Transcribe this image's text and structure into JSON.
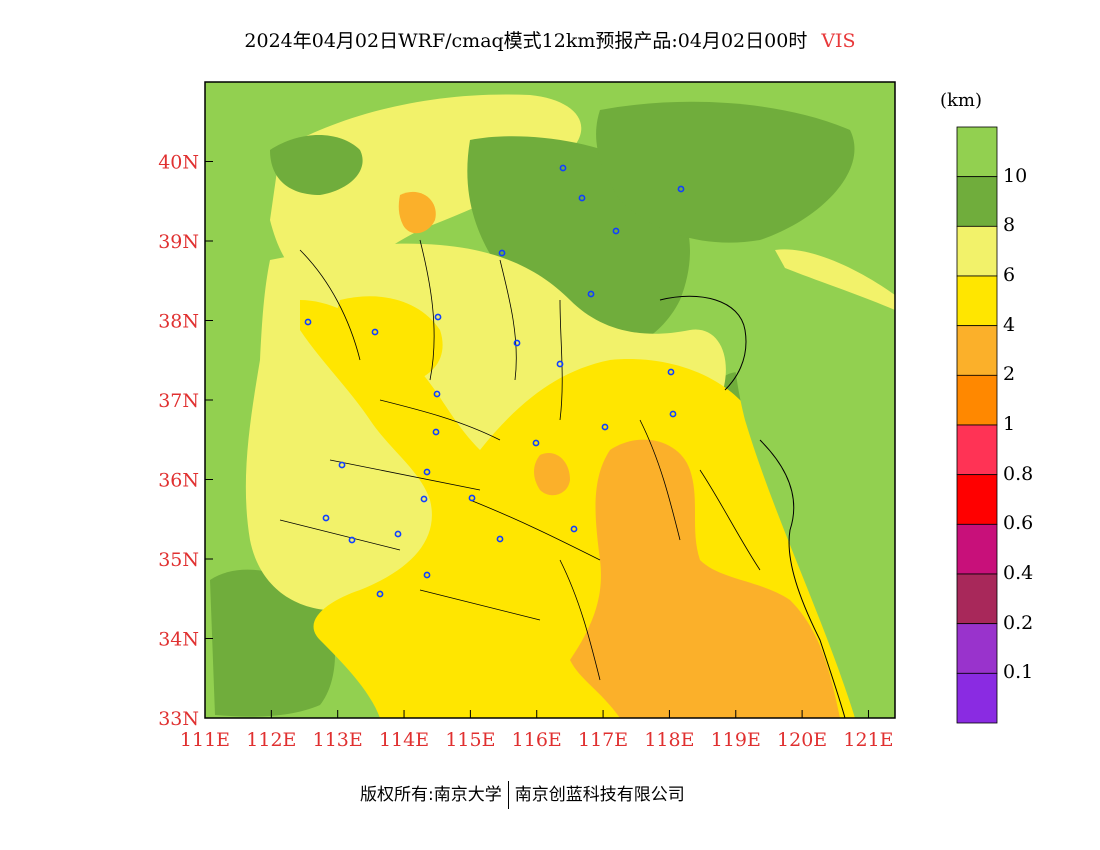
{
  "title": {
    "main": "2024年04月02日WRF/cmaq模式12km预报产品:04月02日00时",
    "variable": "VIS"
  },
  "map": {
    "lon_range": [
      111,
      121.4
    ],
    "lat_range": [
      33,
      41
    ],
    "x_ticks": [
      "111E",
      "112E",
      "113E",
      "114E",
      "115E",
      "116E",
      "117E",
      "118E",
      "119E",
      "120E",
      "121E"
    ],
    "y_ticks": [
      "33N",
      "34N",
      "35N",
      "36N",
      "37N",
      "38N",
      "39N",
      "40N"
    ]
  },
  "colorbar": {
    "unit": "(km)",
    "colors": [
      "#92d050",
      "#70ad3c",
      "#f2f26a",
      "#ffe600",
      "#fbb02a",
      "#ff8800",
      "#ff3355",
      "#ff0000",
      "#c8107a",
      "#a8285a",
      "#9933cc",
      "#8a2be2"
    ],
    "labels": [
      "10",
      "8",
      "6",
      "4",
      "2",
      "1",
      "0.8",
      "0.6",
      "0.4",
      "0.2",
      "0.1"
    ]
  },
  "footer": {
    "left": "版权所有:南京大学",
    "right": "南京创蓝科技有限公司"
  }
}
